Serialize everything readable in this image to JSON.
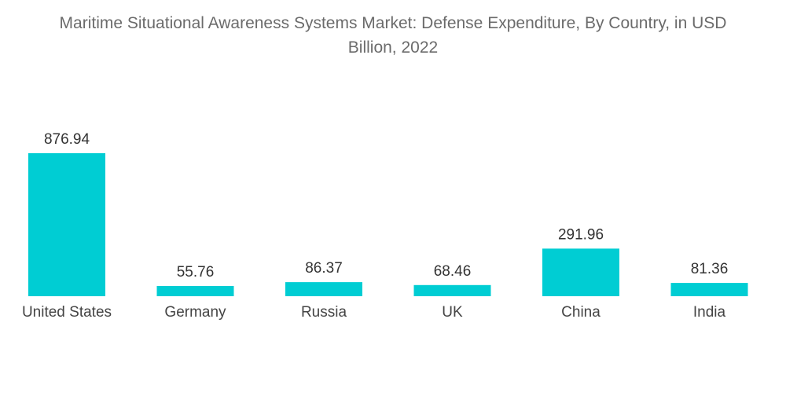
{
  "title_lines": [
    "Maritime Situational Awareness Systems Market: Defense Expenditure, By Country, in USD",
    "Billion, 2022"
  ],
  "chart_data": {
    "type": "bar",
    "title": "Maritime Situational Awareness Systems Market: Defense Expenditure, By Country, in USD Billion, 2022",
    "categories": [
      "United States",
      "Germany",
      "Russia",
      "UK",
      "China",
      "India"
    ],
    "values": [
      876.94,
      55.76,
      86.37,
      68.46,
      291.96,
      81.36
    ],
    "value_labels": [
      "876.94",
      "55.76",
      "86.37",
      "68.46",
      "291.96",
      "81.36"
    ],
    "xlabel": "",
    "ylabel": "",
    "ylim": [
      0,
      876.94
    ],
    "grid": false,
    "legend": "none",
    "bar_color": "#00cdd3"
  }
}
